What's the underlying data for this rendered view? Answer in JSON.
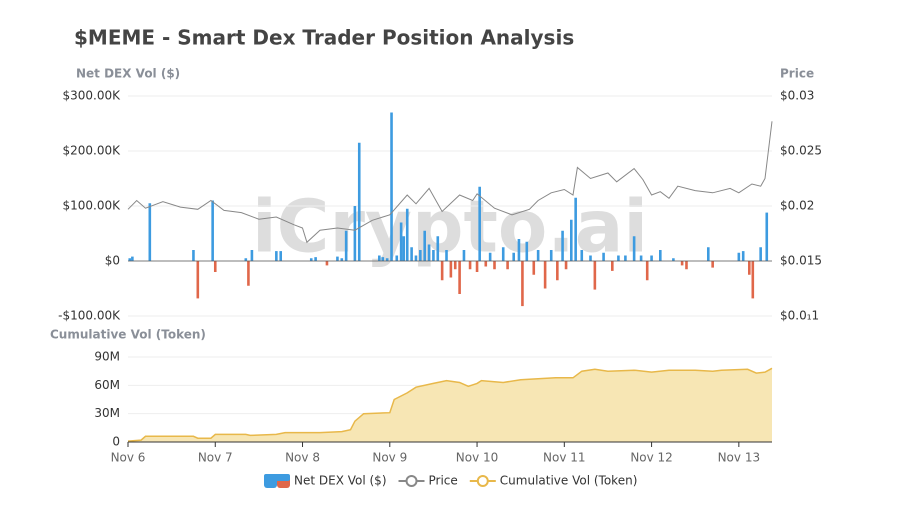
{
  "chart_data": [
    {
      "type": "bar",
      "title": "$MEME - Smart Dex Trader Position Analysis",
      "watermark": "iCrypto.ai",
      "ylabel": "Net DEX Vol ($)",
      "y2label": "Price",
      "grid": true,
      "xlim": [
        6,
        13.38
      ],
      "ylim": [
        -100000,
        300000
      ],
      "yticks": [
        {
          "value": -100000,
          "label": "-$100.00K"
        },
        {
          "value": 0,
          "label": "$0"
        },
        {
          "value": 100000,
          "label": "$100.00K"
        },
        {
          "value": 200000,
          "label": "$200.00K"
        },
        {
          "value": 300000,
          "label": "$300.00K"
        }
      ],
      "y2lim": [
        0.01,
        0.03
      ],
      "y2ticks": [
        {
          "value": 0.01,
          "label": "$0.0₁1"
        },
        {
          "value": 0.015,
          "label": "$0.015"
        },
        {
          "value": 0.02,
          "label": "$0.02"
        },
        {
          "value": 0.025,
          "label": "$0.025"
        },
        {
          "value": 0.03,
          "label": "$0.03"
        }
      ],
      "series": [
        {
          "name": "Net DEX Vol ($)",
          "color": "#3d9be0",
          "negative_color": "#e0674a",
          "x": [
            6.02,
            6.05,
            6.25,
            6.75,
            6.8,
            6.97,
            7.0,
            7.35,
            7.38,
            7.42,
            7.7,
            7.75,
            8.1,
            8.15,
            8.28,
            8.4,
            8.45,
            8.5,
            8.6,
            8.65,
            8.88,
            8.92,
            8.97,
            9.02,
            9.08,
            9.13,
            9.16,
            9.2,
            9.25,
            9.3,
            9.35,
            9.4,
            9.45,
            9.5,
            9.55,
            9.6,
            9.65,
            9.7,
            9.75,
            9.8,
            9.85,
            9.92,
            10.0,
            10.03,
            10.1,
            10.15,
            10.2,
            10.3,
            10.35,
            10.42,
            10.48,
            10.52,
            10.57,
            10.65,
            10.7,
            10.78,
            10.85,
            10.92,
            10.98,
            11.02,
            11.08,
            11.13,
            11.2,
            11.3,
            11.35,
            11.45,
            11.55,
            11.62,
            11.7,
            11.8,
            11.88,
            11.95,
            12.0,
            12.1,
            12.25,
            12.35,
            12.4,
            12.65,
            12.7,
            13.0,
            13.05,
            13.12,
            13.16,
            13.25,
            13.32
          ],
          "values": [
            5000,
            8000,
            105000,
            20000,
            -68000,
            110000,
            -20000,
            5000,
            -45000,
            20000,
            18000,
            18000,
            5000,
            7000,
            -8000,
            8000,
            5000,
            55000,
            100000,
            215000,
            10000,
            7000,
            5000,
            270000,
            10000,
            70000,
            45000,
            95000,
            25000,
            10000,
            20000,
            55000,
            30000,
            20000,
            45000,
            -35000,
            20000,
            -30000,
            -15000,
            -60000,
            20000,
            -15000,
            -20000,
            135000,
            -10000,
            15000,
            -15000,
            25000,
            -15000,
            15000,
            40000,
            -82000,
            35000,
            -25000,
            20000,
            -50000,
            20000,
            -35000,
            55000,
            -15000,
            75000,
            115000,
            20000,
            10000,
            -52000,
            15000,
            -18000,
            10000,
            10000,
            45000,
            10000,
            -35000,
            10000,
            20000,
            5000,
            -8000,
            -15000,
            25000,
            -12000,
            15000,
            18000,
            -25000,
            -68000,
            25000,
            88000
          ]
        },
        {
          "name": "Price",
          "type": "line",
          "axis": "y2",
          "color": "#888888",
          "x": [
            6.0,
            6.1,
            6.2,
            6.4,
            6.6,
            6.8,
            6.95,
            7.1,
            7.3,
            7.5,
            7.7,
            7.9,
            8.0,
            8.05,
            8.2,
            8.4,
            8.6,
            8.8,
            9.0,
            9.2,
            9.3,
            9.45,
            9.6,
            9.8,
            9.95,
            10.0,
            10.2,
            10.4,
            10.6,
            10.7,
            10.85,
            11.0,
            11.1,
            11.15,
            11.3,
            11.5,
            11.6,
            11.8,
            11.9,
            12.0,
            12.1,
            12.2,
            12.3,
            12.5,
            12.7,
            12.9,
            13.0,
            13.15,
            13.25,
            13.3,
            13.38
          ],
          "values": [
            0.0197,
            0.0205,
            0.0198,
            0.0204,
            0.0199,
            0.0197,
            0.0205,
            0.0196,
            0.0194,
            0.0188,
            0.019,
            0.0183,
            0.018,
            0.0167,
            0.0178,
            0.018,
            0.0178,
            0.0187,
            0.0192,
            0.021,
            0.0202,
            0.0216,
            0.0195,
            0.021,
            0.0205,
            0.0211,
            0.0198,
            0.0192,
            0.0197,
            0.0205,
            0.0212,
            0.0215,
            0.021,
            0.0235,
            0.0225,
            0.023,
            0.0222,
            0.0234,
            0.0224,
            0.021,
            0.0213,
            0.0207,
            0.0218,
            0.0214,
            0.0212,
            0.0216,
            0.0212,
            0.022,
            0.0218,
            0.0225,
            0.0277
          ]
        }
      ]
    },
    {
      "type": "area",
      "ylabel": "Cumulative Vol (Token)",
      "grid": true,
      "xlim": [
        6,
        13.38
      ],
      "xticks": [
        {
          "value": 6,
          "label": "Nov 6"
        },
        {
          "value": 7,
          "label": "Nov 7"
        },
        {
          "value": 8,
          "label": "Nov 8"
        },
        {
          "value": 9,
          "label": "Nov 9"
        },
        {
          "value": 10,
          "label": "Nov 10"
        },
        {
          "value": 11,
          "label": "Nov 11"
        },
        {
          "value": 12,
          "label": "Nov 12"
        },
        {
          "value": 13,
          "label": "Nov 13"
        }
      ],
      "ylim": [
        0,
        90000000
      ],
      "yticks": [
        0,
        {
          "value": 30000000,
          "label": "30M"
        },
        {
          "value": 60000000,
          "label": "60M"
        },
        {
          "value": 90000000,
          "label": "90M"
        }
      ],
      "series": [
        {
          "name": "Cumulative Vol (Token)",
          "color": "#e8b84a",
          "fill_color": "#f7e6b4",
          "x": [
            6.0,
            6.15,
            6.2,
            6.75,
            6.8,
            6.95,
            7.0,
            7.35,
            7.4,
            7.7,
            7.8,
            8.2,
            8.45,
            8.55,
            8.6,
            8.7,
            9.0,
            9.05,
            9.2,
            9.3,
            9.5,
            9.65,
            9.8,
            9.9,
            10.0,
            10.05,
            10.3,
            10.5,
            10.7,
            10.9,
            11.1,
            11.2,
            11.35,
            11.5,
            11.8,
            12.0,
            12.2,
            12.5,
            12.7,
            12.8,
            13.1,
            13.2,
            13.3,
            13.38
          ],
          "values": [
            1000000,
            2000000,
            6000000,
            6000000,
            4000000,
            4000000,
            8000000,
            8000000,
            7000000,
            8000000,
            10000000,
            10000000,
            11000000,
            13000000,
            22000000,
            30000000,
            31000000,
            45000000,
            52000000,
            58000000,
            62000000,
            65000000,
            63000000,
            59000000,
            62000000,
            65000000,
            63000000,
            66000000,
            67000000,
            68000000,
            68000000,
            75000000,
            77000000,
            75000000,
            76000000,
            74000000,
            76000000,
            76000000,
            75000000,
            76000000,
            77000000,
            73000000,
            74000000,
            78000000
          ]
        }
      ]
    }
  ]
}
